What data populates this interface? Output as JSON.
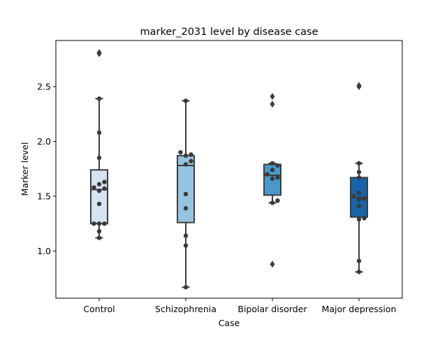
{
  "chart_data": {
    "type": "box",
    "title": "marker_2031 level by disease case",
    "xlabel": "Case",
    "ylabel": "Marker level",
    "ylim": [
      0.57,
      2.92
    ],
    "yticks": [
      1.0,
      1.5,
      2.0,
      2.5
    ],
    "ytick_labels": [
      "1.0",
      "1.5",
      "2.0",
      "2.5"
    ],
    "grid": false,
    "categories": [
      "Control",
      "Schizophrenia",
      "Bipolar disorder",
      "Major depression"
    ],
    "series": [
      {
        "category": "Control",
        "color": "#d6e4f2",
        "box": {
          "whisker_low": 1.12,
          "q1": 1.25,
          "median": 1.56,
          "q3": 1.74,
          "whisker_high": 2.39
        },
        "outliers": [
          2.8,
          2.81
        ],
        "points": [
          1.12,
          1.18,
          1.25,
          1.25,
          1.25,
          1.43,
          1.55,
          1.57,
          1.58,
          1.61,
          1.63,
          1.85,
          2.08,
          2.39
        ]
      },
      {
        "category": "Schizophrenia",
        "color": "#94c4df",
        "box": {
          "whisker_low": 0.67,
          "q1": 1.26,
          "median": 1.78,
          "q3": 1.87,
          "whisker_high": 2.37
        },
        "outliers": [],
        "points": [
          0.67,
          1.05,
          1.14,
          1.39,
          1.52,
          1.79,
          1.82,
          1.87,
          1.88,
          1.9,
          2.37
        ]
      },
      {
        "category": "Bipolar disorder",
        "color": "#4a98c9",
        "box": {
          "whisker_low": 1.44,
          "q1": 1.51,
          "median": 1.69,
          "q3": 1.79,
          "whisker_high": 1.8
        },
        "outliers": [
          0.88,
          2.34,
          2.41
        ],
        "points": [
          1.44,
          1.46,
          1.66,
          1.67,
          1.7,
          1.74,
          1.78,
          1.8
        ]
      },
      {
        "category": "Major depression",
        "color": "#1764ab",
        "box": {
          "whisker_low": 0.81,
          "q1": 1.31,
          "median": 1.49,
          "q3": 1.67,
          "whisker_high": 1.8
        },
        "outliers": [
          2.5,
          2.51
        ],
        "points": [
          0.81,
          0.91,
          1.29,
          1.3,
          1.41,
          1.47,
          1.48,
          1.5,
          1.53,
          1.67,
          1.72,
          1.8
        ]
      }
    ]
  }
}
